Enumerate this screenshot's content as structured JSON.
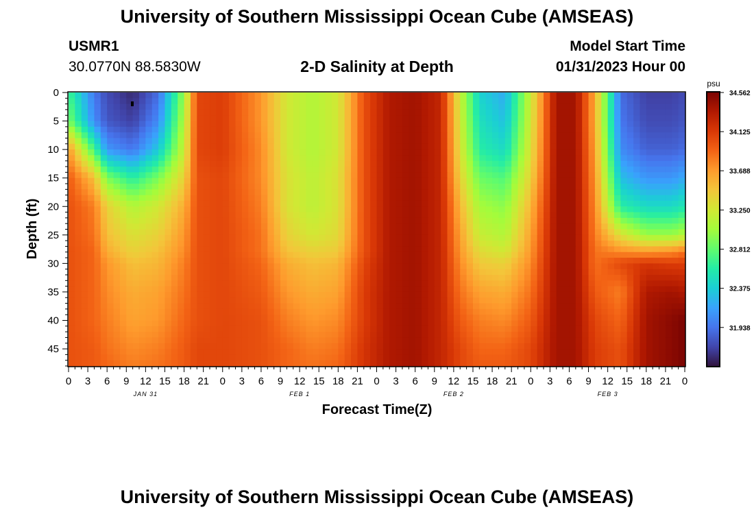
{
  "header": {
    "title": "University of Southern Mississippi Ocean Cube (AMSEAS)",
    "station_id": "USMR1",
    "station_coords": "30.0770N  88.5830W",
    "plot_title": "2-D Salinity at Depth",
    "model_start_label": "Model Start Time",
    "model_start_value": "01/31/2023 Hour 00"
  },
  "footer": {
    "title": "University of Southern Mississippi Ocean Cube (AMSEAS)"
  },
  "chart_data": {
    "type": "heatmap",
    "title": "2-D Salinity at Depth",
    "xlabel": "Forecast Time(Z)",
    "ylabel": "Depth (ft)",
    "x_range_hours": [
      0,
      96
    ],
    "y_range_ft": [
      0,
      48
    ],
    "x_tick_labels": [
      "0",
      "3",
      "6",
      "9",
      "12",
      "15",
      "18",
      "21",
      "0",
      "3",
      "6",
      "9",
      "12",
      "15",
      "18",
      "21",
      "0",
      "3",
      "6",
      "9",
      "12",
      "15",
      "18",
      "21",
      "0",
      "3",
      "6",
      "9",
      "12",
      "15",
      "18",
      "21",
      "0"
    ],
    "y_tick_labels": [
      "0",
      "5",
      "10",
      "15",
      "20",
      "25",
      "30",
      "35",
      "40",
      "45"
    ],
    "date_labels": [
      {
        "label": "JAN 31",
        "hour": 12
      },
      {
        "label": "FEB 1",
        "hour": 36
      },
      {
        "label": "FEB 2",
        "hour": 60
      },
      {
        "label": "FEB 3",
        "hour": 84
      }
    ],
    "colorbar": {
      "unit": "psu",
      "min": 31.5,
      "max": 34.562,
      "tick_labels": [
        "34.562",
        "34.125",
        "33.688",
        "33.250",
        "32.812",
        "32.375",
        "31.938"
      ],
      "colors": [
        "#30123b",
        "#4145ab",
        "#4675ed",
        "#39a2fc",
        "#1bcfd4",
        "#24eca6",
        "#61fc6c",
        "#a4fc3b",
        "#d1e834",
        "#f3c63a",
        "#fe9b2d",
        "#f36315",
        "#d93806",
        "#b11901",
        "#7a0402"
      ]
    },
    "time_hours": [
      0,
      4,
      6,
      10,
      14,
      18,
      20,
      24,
      30,
      34,
      38,
      42,
      46,
      50,
      54,
      58,
      61,
      64,
      68,
      72,
      76,
      79,
      82,
      86,
      90,
      94,
      96
    ],
    "depth_ft": [
      0,
      5,
      10,
      15,
      20,
      25,
      28,
      30,
      35,
      40,
      45,
      48
    ],
    "salinity_psu": [
      [
        32.7,
        31.95,
        31.75,
        31.6,
        31.9,
        33.0,
        34.05,
        34.1,
        33.7,
        33.25,
        33.1,
        33.25,
        34.0,
        34.35,
        34.4,
        34.25,
        33.2,
        32.4,
        32.2,
        33.2,
        34.4,
        34.4,
        33.6,
        31.9,
        31.7,
        31.7,
        31.75
      ],
      [
        32.9,
        32.05,
        31.8,
        31.7,
        32.05,
        33.1,
        34.05,
        34.1,
        33.7,
        33.25,
        33.1,
        33.25,
        34.0,
        34.35,
        34.4,
        34.25,
        33.25,
        32.5,
        32.3,
        33.25,
        34.4,
        34.4,
        33.6,
        31.95,
        31.75,
        31.75,
        31.8
      ],
      [
        33.7,
        32.7,
        32.1,
        31.95,
        32.35,
        33.2,
        34.05,
        34.1,
        33.75,
        33.25,
        33.1,
        33.25,
        34.0,
        34.35,
        34.4,
        34.25,
        33.3,
        32.6,
        32.45,
        33.3,
        34.4,
        34.4,
        33.65,
        32.05,
        31.85,
        31.85,
        31.9
      ],
      [
        33.95,
        33.5,
        32.9,
        32.6,
        32.9,
        33.4,
        34.0,
        34.05,
        33.75,
        33.3,
        33.15,
        33.3,
        34.0,
        34.35,
        34.4,
        34.25,
        33.4,
        32.85,
        32.75,
        33.4,
        34.4,
        34.4,
        33.7,
        32.3,
        32.1,
        32.1,
        32.2
      ],
      [
        34.0,
        33.8,
        33.4,
        33.1,
        33.25,
        33.6,
        34.0,
        34.05,
        33.8,
        33.3,
        33.15,
        33.3,
        34.0,
        34.35,
        34.4,
        34.25,
        33.55,
        33.05,
        32.95,
        33.55,
        34.4,
        34.4,
        33.75,
        32.6,
        32.45,
        32.45,
        32.55
      ],
      [
        34.0,
        33.85,
        33.5,
        33.3,
        33.4,
        33.7,
        34.0,
        34.05,
        33.85,
        33.4,
        33.25,
        33.35,
        34.0,
        34.35,
        34.4,
        34.25,
        33.65,
        33.2,
        33.1,
        33.65,
        34.4,
        34.4,
        33.8,
        33.3,
        33.0,
        33.0,
        33.1
      ],
      [
        34.0,
        33.9,
        33.6,
        33.4,
        33.5,
        33.75,
        34.0,
        34.05,
        33.85,
        33.5,
        33.4,
        33.45,
        34.0,
        34.35,
        34.4,
        34.25,
        33.7,
        33.35,
        33.25,
        33.7,
        34.4,
        34.4,
        33.85,
        33.75,
        33.7,
        33.75,
        33.85
      ],
      [
        34.0,
        33.9,
        33.7,
        33.5,
        33.55,
        33.8,
        34.0,
        34.05,
        33.9,
        33.6,
        33.5,
        33.55,
        34.05,
        34.35,
        34.4,
        34.25,
        33.75,
        33.45,
        33.4,
        33.75,
        34.4,
        34.4,
        33.85,
        34.05,
        34.15,
        34.1,
        34.1
      ],
      [
        34.0,
        33.9,
        33.75,
        33.6,
        33.65,
        33.85,
        34.0,
        34.05,
        33.95,
        33.7,
        33.6,
        33.65,
        34.1,
        34.35,
        34.4,
        34.25,
        33.85,
        33.65,
        33.6,
        33.85,
        34.4,
        34.4,
        33.95,
        33.8,
        34.35,
        34.4,
        34.35
      ],
      [
        34.0,
        33.9,
        33.8,
        33.65,
        33.7,
        33.9,
        34.0,
        34.05,
        34.0,
        33.8,
        33.7,
        33.75,
        34.1,
        34.35,
        34.4,
        34.25,
        33.95,
        33.8,
        33.75,
        33.95,
        34.4,
        34.4,
        34.05,
        33.9,
        34.4,
        34.5,
        34.56
      ],
      [
        34.0,
        33.95,
        33.85,
        33.75,
        33.8,
        33.95,
        34.05,
        34.05,
        34.0,
        33.9,
        33.8,
        33.85,
        34.15,
        34.35,
        34.4,
        34.25,
        34.05,
        33.9,
        33.9,
        34.05,
        34.4,
        34.4,
        34.1,
        34.0,
        34.4,
        34.5,
        34.56
      ],
      [
        34.0,
        33.95,
        33.9,
        33.8,
        33.85,
        33.95,
        34.05,
        34.05,
        34.0,
        33.9,
        33.85,
        33.9,
        34.15,
        34.35,
        34.4,
        34.25,
        34.05,
        33.95,
        33.95,
        34.05,
        34.4,
        34.4,
        34.1,
        34.0,
        34.4,
        34.5,
        34.56
      ]
    ]
  }
}
